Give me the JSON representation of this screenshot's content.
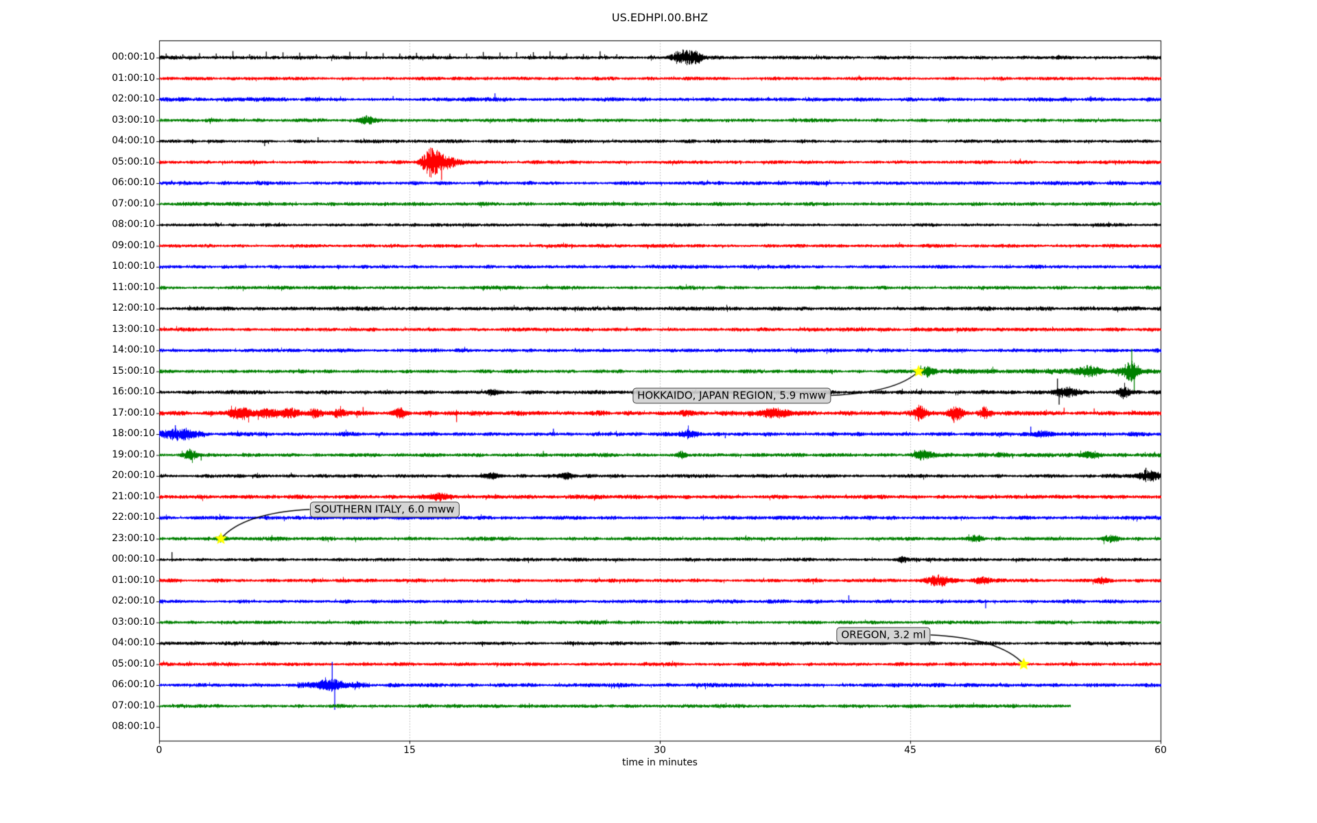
{
  "page_background": "#ffffff",
  "chart_data": {
    "type": "line",
    "subtype": "seismic-helicorder-dayplot",
    "title": "US.EDHPI.00.BHZ",
    "xlabel": "time in minutes",
    "xlim": [
      0,
      60
    ],
    "x_ticks": [
      0,
      15,
      30,
      45,
      60
    ],
    "grid_minutes": [
      15,
      30,
      45
    ],
    "grid_on": true,
    "grid_color": "#b0b0b0",
    "axis_color": "#000000",
    "star_color": "#ffff00",
    "event_box_bg": "#d0d0d0",
    "event_box_border": "#3f3f3f",
    "trace_color_cycle": [
      "#000000",
      "#ff0000",
      "#0000ff",
      "#008000"
    ],
    "minutes_per_row": 60,
    "rows": [
      {
        "label": "00:00:10",
        "color": "#000000",
        "duration": 60,
        "amp": 1.0,
        "features": [
          {
            "type": "pulses",
            "t0": 0.4,
            "t1": 28,
            "dt": 1,
            "a": 8
          },
          {
            "type": "burst",
            "t": 31.4,
            "w": 0.7,
            "a": 10
          },
          {
            "type": "burst",
            "t": 32.2,
            "w": 0.4,
            "a": 6
          }
        ]
      },
      {
        "label": "01:00:10",
        "color": "#ff0000",
        "duration": 60,
        "amp": 1.0,
        "features": []
      },
      {
        "label": "02:00:10",
        "color": "#0000ff",
        "duration": 60,
        "amp": 1.15,
        "features": [
          {
            "type": "spike",
            "t": 14.0,
            "a": 5
          },
          {
            "type": "spike",
            "t": 20.1,
            "a": 9
          },
          {
            "type": "spike",
            "t": 55.8,
            "a": 5
          }
        ]
      },
      {
        "label": "03:00:10",
        "color": "#008000",
        "duration": 60,
        "amp": 1.0,
        "features": [
          {
            "type": "burst",
            "t": 12.4,
            "w": 0.5,
            "a": 5
          }
        ]
      },
      {
        "label": "04:00:10",
        "color": "#000000",
        "duration": 60,
        "amp": 1.0,
        "features": [
          {
            "type": "spike",
            "t": 6.3,
            "a": -7
          },
          {
            "type": "spike",
            "t": 9.5,
            "a": 6
          }
        ]
      },
      {
        "label": "05:00:10",
        "color": "#ff0000",
        "duration": 60,
        "amp": 1.0,
        "features": [
          {
            "type": "burst",
            "t": 16.3,
            "w": 0.55,
            "a": 20
          },
          {
            "type": "spike",
            "t": 16.9,
            "a": -26
          },
          {
            "type": "burst",
            "t": 17.3,
            "w": 0.8,
            "a": 8
          }
        ]
      },
      {
        "label": "06:00:10",
        "color": "#0000ff",
        "duration": 60,
        "amp": 1.1,
        "features": []
      },
      {
        "label": "07:00:10",
        "color": "#008000",
        "duration": 60,
        "amp": 1.05,
        "features": []
      },
      {
        "label": "08:00:10",
        "color": "#000000",
        "duration": 60,
        "amp": 0.95,
        "features": []
      },
      {
        "label": "09:00:10",
        "color": "#ff0000",
        "duration": 60,
        "amp": 1.0,
        "features": [
          {
            "type": "spike",
            "t": 22.2,
            "a": 5
          }
        ]
      },
      {
        "label": "10:00:10",
        "color": "#0000ff",
        "duration": 60,
        "amp": 1.05,
        "features": []
      },
      {
        "label": "11:00:10",
        "color": "#008000",
        "duration": 60,
        "amp": 1.0,
        "features": []
      },
      {
        "label": "12:00:10",
        "color": "#000000",
        "duration": 60,
        "amp": 1.15,
        "features": []
      },
      {
        "label": "13:00:10",
        "color": "#ff0000",
        "duration": 60,
        "amp": 1.05,
        "features": [
          {
            "type": "spike",
            "t": 28,
            "a": 4
          }
        ]
      },
      {
        "label": "14:00:10",
        "color": "#0000ff",
        "duration": 60,
        "amp": 1.05,
        "features": []
      },
      {
        "label": "15:00:10",
        "color": "#008000",
        "duration": 60,
        "amp": 1.0,
        "features": [
          {
            "type": "hi",
            "t0": 45.4,
            "t1": 60,
            "f": 1.5
          },
          {
            "type": "burst",
            "t": 46.0,
            "w": 0.4,
            "a": 5
          },
          {
            "type": "burst",
            "t": 55.7,
            "w": 0.6,
            "a": 6
          },
          {
            "type": "burst",
            "t": 58.2,
            "w": 0.45,
            "a": 14
          },
          {
            "type": "spike",
            "t": 58.25,
            "a": 33
          },
          {
            "type": "spike",
            "t": 58.4,
            "a": -30
          }
        ]
      },
      {
        "label": "16:00:10",
        "color": "#000000",
        "duration": 60,
        "amp": 1.1,
        "features": [
          {
            "type": "burst",
            "t": 20.0,
            "w": 0.4,
            "a": 4
          },
          {
            "type": "spike",
            "t": 53.8,
            "a": 20
          },
          {
            "type": "spike",
            "t": 53.9,
            "a": -18
          },
          {
            "type": "burst",
            "t": 54.3,
            "w": 0.7,
            "a": 7
          },
          {
            "type": "burst",
            "t": 57.8,
            "w": 0.35,
            "a": 9
          }
        ]
      },
      {
        "label": "17:00:10",
        "color": "#ff0000",
        "duration": 60,
        "amp": 1.3,
        "features": [
          {
            "type": "burst",
            "t": 4.9,
            "w": 0.8,
            "a": 7
          },
          {
            "type": "burst",
            "t": 6.5,
            "w": 0.5,
            "a": 6
          },
          {
            "type": "burst",
            "t": 7.8,
            "w": 0.5,
            "a": 7
          },
          {
            "type": "burst",
            "t": 9.3,
            "w": 0.4,
            "a": 5
          },
          {
            "type": "burst",
            "t": 10.7,
            "w": 0.4,
            "a": 5
          },
          {
            "type": "spike",
            "t": 12.2,
            "a": 9
          },
          {
            "type": "burst",
            "t": 14.4,
            "w": 0.4,
            "a": 6
          },
          {
            "type": "spike",
            "t": 17.8,
            "a": -13
          },
          {
            "type": "burst",
            "t": 31.5,
            "w": 0.4,
            "a": 4
          },
          {
            "type": "burst",
            "t": 36.8,
            "w": 0.9,
            "a": 6
          },
          {
            "type": "burst",
            "t": 45.6,
            "w": 0.4,
            "a": 10
          },
          {
            "type": "spike",
            "t": 47.6,
            "a": -14
          },
          {
            "type": "burst",
            "t": 47.7,
            "w": 0.4,
            "a": 9
          },
          {
            "type": "burst",
            "t": 49.5,
            "w": 0.35,
            "a": 8
          },
          {
            "type": "spike",
            "t": 54.2,
            "a": 8
          },
          {
            "type": "spike",
            "t": 56.0,
            "a": 7
          }
        ]
      },
      {
        "label": "18:00:10",
        "color": "#0000ff",
        "duration": 60,
        "amp": 1.15,
        "features": [
          {
            "type": "burst",
            "t": 1.2,
            "w": 1.1,
            "a": 8
          },
          {
            "type": "spike",
            "t": 0.95,
            "a": 13
          },
          {
            "type": "spike",
            "t": 23.6,
            "a": 8
          },
          {
            "type": "burst",
            "t": 31.7,
            "w": 0.5,
            "a": 5
          },
          {
            "type": "spike",
            "t": 33.9,
            "a": -6
          },
          {
            "type": "spike",
            "t": 52.2,
            "a": 11
          },
          {
            "type": "burst",
            "t": 53.0,
            "w": 0.7,
            "a": 4
          }
        ]
      },
      {
        "label": "19:00:10",
        "color": "#008000",
        "duration": 60,
        "amp": 1.05,
        "features": [
          {
            "type": "burst",
            "t": 1.9,
            "w": 0.4,
            "a": 7
          },
          {
            "type": "spike",
            "t": 2.5,
            "a": -8
          },
          {
            "type": "spike",
            "t": 23.0,
            "a": 6
          },
          {
            "type": "burst",
            "t": 31.3,
            "w": 0.3,
            "a": 5
          },
          {
            "type": "burst",
            "t": 45.7,
            "w": 0.5,
            "a": 7
          },
          {
            "type": "hi",
            "t0": 45.7,
            "t1": 60,
            "f": 1.25
          },
          {
            "type": "burst",
            "t": 55.8,
            "w": 0.5,
            "a": 4
          }
        ]
      },
      {
        "label": "20:00:10",
        "color": "#000000",
        "duration": 60,
        "amp": 1.05,
        "features": [
          {
            "type": "burst",
            "t": 20.0,
            "w": 0.5,
            "a": 4
          },
          {
            "type": "burst",
            "t": 24.4,
            "w": 0.4,
            "a": 4
          },
          {
            "type": "burst",
            "t": 59.2,
            "w": 0.7,
            "a": 8
          },
          {
            "type": "spike",
            "t": 59.1,
            "a": 12
          }
        ]
      },
      {
        "label": "21:00:10",
        "color": "#ff0000",
        "duration": 60,
        "amp": 1.15,
        "features": [
          {
            "type": "burst",
            "t": 16.7,
            "w": 0.6,
            "a": 5
          }
        ]
      },
      {
        "label": "22:00:10",
        "color": "#0000ff",
        "duration": 60,
        "amp": 1.1,
        "features": []
      },
      {
        "label": "23:00:10",
        "color": "#008000",
        "duration": 60,
        "amp": 1.05,
        "features": [
          {
            "type": "burst",
            "t": 3.7,
            "w": 0.3,
            "a": 4
          },
          {
            "type": "burst",
            "t": 49.0,
            "w": 0.4,
            "a": 4
          },
          {
            "type": "burst",
            "t": 57.0,
            "w": 0.5,
            "a": 4
          }
        ]
      },
      {
        "label": "00:00:10",
        "color": "#000000",
        "duration": 60,
        "amp": 1.0,
        "features": [
          {
            "type": "spike",
            "t": 0.75,
            "a": 11
          },
          {
            "type": "burst",
            "t": 44.5,
            "w": 0.3,
            "a": 4
          }
        ]
      },
      {
        "label": "01:00:10",
        "color": "#ff0000",
        "duration": 60,
        "amp": 1.05,
        "features": [
          {
            "type": "burst",
            "t": 46.7,
            "w": 0.8,
            "a": 7
          },
          {
            "type": "spike",
            "t": 46.9,
            "a": -9
          },
          {
            "type": "burst",
            "t": 49.2,
            "w": 0.5,
            "a": 5
          },
          {
            "type": "burst",
            "t": 56.5,
            "w": 0.4,
            "a": 4
          }
        ]
      },
      {
        "label": "02:00:10",
        "color": "#0000ff",
        "duration": 60,
        "amp": 1.05,
        "features": [
          {
            "type": "spike",
            "t": 41.3,
            "a": 9
          },
          {
            "type": "spike",
            "t": 49.5,
            "a": -10
          }
        ]
      },
      {
        "label": "03:00:10",
        "color": "#008000",
        "duration": 60,
        "amp": 1.0,
        "features": []
      },
      {
        "label": "04:00:10",
        "color": "#000000",
        "duration": 60,
        "amp": 1.0,
        "features": []
      },
      {
        "label": "05:00:10",
        "color": "#ff0000",
        "duration": 60,
        "amp": 1.0,
        "features": []
      },
      {
        "label": "06:00:10",
        "color": "#0000ff",
        "duration": 60,
        "amp": 1.1,
        "features": [
          {
            "type": "hi",
            "t0": 8.3,
            "t1": 12.6,
            "f": 1.9
          },
          {
            "type": "burst",
            "t": 10.1,
            "w": 0.9,
            "a": 5
          },
          {
            "type": "spike",
            "t": 10.35,
            "a": 34
          },
          {
            "type": "spike",
            "t": 10.5,
            "a": -36
          }
        ]
      },
      {
        "label": "07:00:10",
        "color": "#008000",
        "duration": 54.6,
        "amp": 1.05,
        "features": []
      },
      {
        "label": "08:00:10",
        "color": "#000000",
        "duration": 0,
        "amp": 0,
        "features": []
      }
    ],
    "events": [
      {
        "label": "HOKKAIDO, JAPAN REGION, 5.9 mww",
        "row": 15,
        "minute": 45.5,
        "box_minute": 34.3,
        "box_row": 16.15
      },
      {
        "label": "SOUTHERN ITALY, 6.0 mww",
        "row": 23,
        "minute": 3.7,
        "box_minute": 13.5,
        "box_row": 21.6
      },
      {
        "label": "OREGON, 3.2 ml",
        "row": 29,
        "minute": 51.8,
        "box_minute": 43.4,
        "box_row": 27.6
      }
    ]
  }
}
